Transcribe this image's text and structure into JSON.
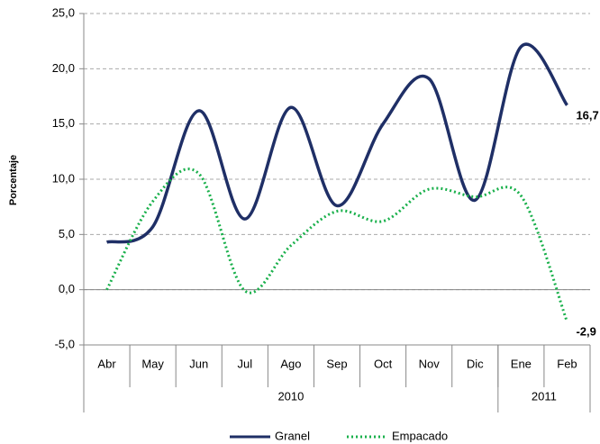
{
  "chart_data": {
    "type": "line",
    "y_label": "Porcentaje",
    "categories": [
      "Abr",
      "May",
      "Jun",
      "Jul",
      "Ago",
      "Sep",
      "Oct",
      "Nov",
      "Dic",
      "Ene",
      "Feb"
    ],
    "year_groups": [
      {
        "label": "2010",
        "count": 9
      },
      {
        "label": "2011",
        "count": 2
      }
    ],
    "series": [
      {
        "name": "Granel",
        "color": "#1f2f66",
        "style": "solid",
        "values": [
          4.3,
          5.7,
          16.2,
          6.4,
          16.5,
          7.6,
          15.0,
          19.1,
          8.1,
          22.0,
          16.7
        ],
        "value_labels": [
          null,
          null,
          null,
          null,
          null,
          null,
          null,
          null,
          null,
          null,
          "16,7"
        ],
        "label_color": "#2f4a7a"
      },
      {
        "name": "Empacado",
        "color": "#19b04b",
        "style": "dotted",
        "values": [
          0.0,
          8.0,
          10.5,
          -0.1,
          4.0,
          7.1,
          6.2,
          9.1,
          8.4,
          8.5,
          -2.9
        ],
        "value_labels": [
          null,
          null,
          null,
          null,
          null,
          null,
          null,
          null,
          null,
          null,
          "-2,9"
        ],
        "label_color": "#19b04b"
      }
    ],
    "ylim": [
      -5,
      25
    ],
    "yticks": [
      {
        "value": -5,
        "label": "-5,0"
      },
      {
        "value": 0,
        "label": "0,0"
      },
      {
        "value": 5,
        "label": "5,0"
      },
      {
        "value": 10,
        "label": "10,0"
      },
      {
        "value": 15,
        "label": "15,0"
      },
      {
        "value": 20,
        "label": "20,0"
      },
      {
        "value": 25,
        "label": "25,0"
      }
    ],
    "grid": true,
    "legend": "bottom"
  }
}
